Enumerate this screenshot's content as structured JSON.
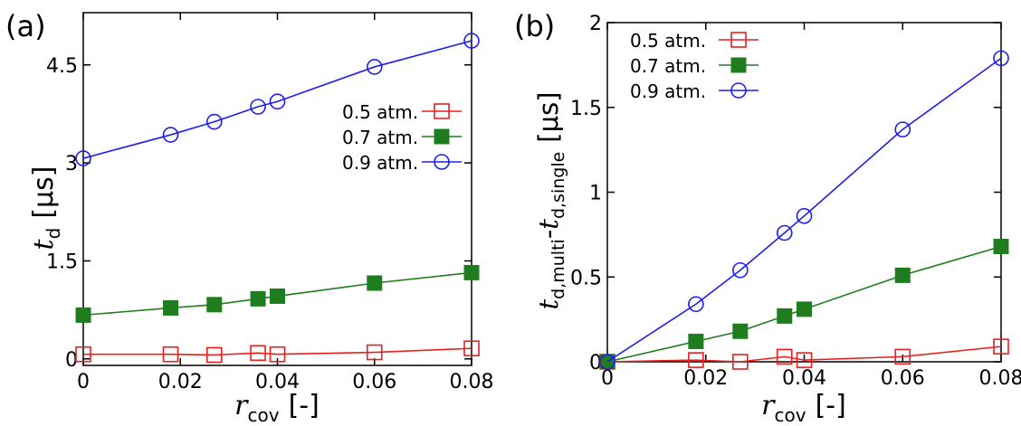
{
  "colors": {
    "red": "#e8201e",
    "green": "#1f7d1f",
    "blue": "#1c1ff0",
    "axis": "#000000"
  },
  "chart_data": [
    {
      "type": "line",
      "panel_label": "(a)",
      "x_tick_labels": [
        "0",
        "0.02",
        "0.04",
        "0.06",
        "0.08"
      ],
      "x_ticks": [
        0,
        0.02,
        0.04,
        0.06,
        0.08
      ],
      "xlim": [
        0,
        0.08
      ],
      "y_tick_labels": [
        "0",
        "1.5",
        "3",
        "4.5"
      ],
      "y_ticks": [
        0,
        1.5,
        3,
        4.5
      ],
      "ylim": [
        -0.1,
        5.3
      ],
      "xlabel": {
        "main": "r",
        "sub": "cov",
        "unit": "[-]"
      },
      "ylabel": {
        "main": "t",
        "sub": "d",
        "unit": "[μs]"
      },
      "legend_position": "middle-right",
      "x": [
        0,
        0.018,
        0.027,
        0.036,
        0.04,
        0.06,
        0.08
      ],
      "series": [
        {
          "name": "0.5 atm.",
          "marker": "open-square",
          "color": "#e8201e",
          "values": [
            0.07,
            0.07,
            0.06,
            0.09,
            0.07,
            0.1,
            0.16
          ]
        },
        {
          "name": "0.7 atm.",
          "marker": "filled-square",
          "color": "#1f7d1f",
          "values": [
            0.67,
            0.78,
            0.83,
            0.92,
            0.96,
            1.16,
            1.32
          ]
        },
        {
          "name": "0.9 atm.",
          "marker": "open-circle",
          "color": "#1c1ff0",
          "values": [
            3.07,
            3.43,
            3.63,
            3.86,
            3.94,
            4.47,
            4.87
          ]
        }
      ]
    },
    {
      "type": "line",
      "panel_label": "(b)",
      "x_tick_labels": [
        "0",
        "0.02",
        "0.04",
        "0.06",
        "0.08"
      ],
      "x_ticks": [
        0,
        0.02,
        0.04,
        0.06,
        0.08
      ],
      "xlim": [
        0,
        0.08
      ],
      "y_tick_labels": [
        "0",
        "0.5",
        "1",
        "1.5",
        "2"
      ],
      "y_ticks": [
        0,
        0.5,
        1,
        1.5,
        2
      ],
      "ylim": [
        0,
        2
      ],
      "xlabel": {
        "main": "r",
        "sub": "cov",
        "unit": "[-]"
      },
      "ylabel": {
        "main1": "t",
        "sub1": "d,multi",
        "dash": "-",
        "main2": "t",
        "sub2": "d,single",
        "unit": "[μs]"
      },
      "legend_position": "top-left",
      "x": [
        0,
        0.018,
        0.027,
        0.036,
        0.04,
        0.06,
        0.08
      ],
      "series": [
        {
          "name": "0.5 atm.",
          "marker": "open-square",
          "color": "#e8201e",
          "values": [
            0,
            0.01,
            0,
            0.03,
            0.01,
            0.03,
            0.09
          ]
        },
        {
          "name": "0.7 atm.",
          "marker": "filled-square",
          "color": "#1f7d1f",
          "values": [
            0,
            0.12,
            0.18,
            0.27,
            0.31,
            0.51,
            0.68
          ]
        },
        {
          "name": "0.9 atm.",
          "marker": "open-circle",
          "color": "#1c1ff0",
          "values": [
            0,
            0.34,
            0.54,
            0.76,
            0.86,
            1.37,
            1.79
          ]
        }
      ]
    }
  ]
}
